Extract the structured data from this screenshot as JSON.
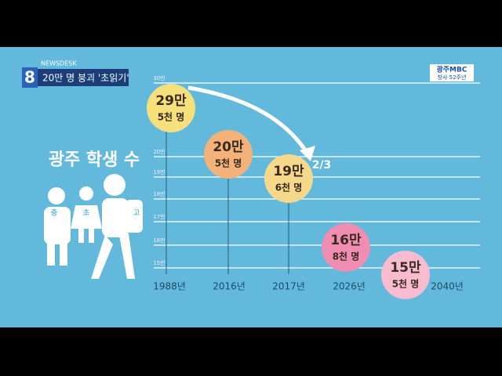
{
  "header": {
    "channel": "8",
    "program": "NEWSDESK",
    "headline": "20만 명 붕괴 '초읽기'"
  },
  "logo": {
    "name": "광주MBC",
    "anniversary": "창사 52주년"
  },
  "infographic": {
    "title": "광주 학생 수",
    "figures": [
      "중",
      "초",
      "고"
    ],
    "y_labels": [
      "30만",
      "20만",
      "19만",
      "18만",
      "17만",
      "16만",
      "15만"
    ],
    "x_labels": [
      "1988년",
      "2016년",
      "2017년",
      "2026년",
      "2040년"
    ],
    "bubbles": [
      {
        "top": "29만",
        "bottom": "5천 명"
      },
      {
        "top": "20만",
        "bottom": "5천 명"
      },
      {
        "top": "19만",
        "bottom": "6천 명"
      },
      {
        "top": "16만",
        "bottom": "8천 명"
      },
      {
        "top": "15만",
        "bottom": "5천 명"
      }
    ],
    "annotation": "2/3"
  }
}
